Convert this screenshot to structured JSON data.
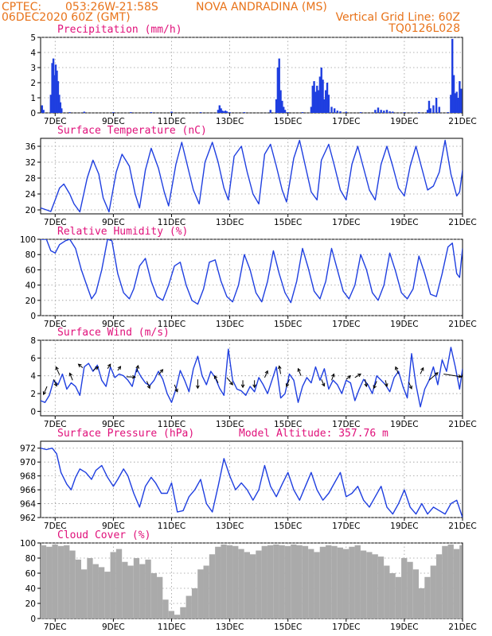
{
  "header": {
    "line1_left": "CPTEC:",
    "line1_coords": "053:26W-21:58S",
    "line1_city": "NOVA ANDRADINA (MS)",
    "line2_left": "06DEC2020 60Z (GMT)",
    "line2_right": "Vertical Grid Line: 60Z",
    "line3_right": "TQ0126L028"
  },
  "x_axis": {
    "ticks": [
      {
        "day": 7,
        "label": "7DEC"
      },
      {
        "day": 9,
        "label": "9DEC"
      },
      {
        "day": 11,
        "label": "11DEC"
      },
      {
        "day": 13,
        "label": "13DEC"
      },
      {
        "day": 15,
        "label": "15DEC"
      },
      {
        "day": 17,
        "label": "17DEC"
      },
      {
        "day": 19,
        "label": "19DEC"
      },
      {
        "day": 21,
        "label": "21DEC"
      }
    ],
    "range_days": [
      6.5,
      21.0
    ]
  },
  "colors": {
    "header": "#e8731a",
    "title": "#e0107a",
    "series": "#1f3fe0",
    "bars": "#1f3fe0",
    "cloud": "#aaaaaa",
    "arrows": "#000000"
  },
  "chart_data": [
    {
      "id": "precip",
      "type": "bar",
      "title": "Precipitation (mm/h)",
      "ylim": [
        0,
        5
      ],
      "yticks": [
        0,
        1,
        2,
        3,
        4,
        5
      ],
      "grid": true,
      "x_days": [
        6.55,
        6.6,
        6.85,
        6.9,
        6.94,
        6.98,
        7.02,
        7.06,
        7.1,
        7.14,
        7.18,
        7.22,
        7.5,
        8.0,
        9.0,
        9.6,
        10.3,
        11.0,
        12.0,
        12.6,
        12.65,
        12.7,
        12.75,
        12.8,
        12.85,
        12.9,
        13.0,
        13.5,
        14.4,
        14.6,
        14.65,
        14.7,
        14.75,
        14.8,
        14.85,
        14.9,
        15.0,
        15.5,
        15.8,
        15.85,
        15.9,
        15.95,
        16.0,
        16.05,
        16.1,
        16.15,
        16.2,
        16.25,
        16.3,
        16.35,
        16.4,
        16.5,
        16.6,
        16.7,
        16.8,
        17.0,
        17.5,
        18.0,
        18.1,
        18.2,
        18.3,
        18.4,
        18.5,
        18.6,
        19.0,
        19.5,
        19.8,
        19.85,
        19.9,
        20.0,
        20.1,
        20.2,
        20.5,
        20.6,
        20.65,
        20.7,
        20.75,
        20.8,
        20.85,
        20.9,
        20.95
      ],
      "values": [
        0.5,
        0.2,
        1.2,
        3.3,
        3.6,
        2.5,
        3.2,
        2.8,
        2.1,
        1.2,
        0.7,
        0.3,
        0.05,
        0.08,
        0.05,
        0.05,
        0.05,
        0.08,
        0.05,
        0.2,
        0.5,
        0.3,
        0.15,
        0.1,
        0.15,
        0.1,
        0.05,
        0.05,
        0.2,
        0.9,
        3.0,
        3.6,
        1.5,
        0.8,
        0.4,
        0.2,
        0.05,
        0.05,
        0.4,
        1.8,
        2.1,
        1.4,
        1.8,
        1.5,
        2.4,
        3.0,
        2.2,
        0.9,
        1.5,
        2.0,
        1.2,
        0.4,
        0.3,
        0.15,
        0.1,
        0.08,
        0.05,
        0.2,
        0.35,
        0.2,
        0.15,
        0.2,
        0.1,
        0.08,
        0.05,
        0.05,
        0.2,
        0.8,
        0.3,
        0.5,
        1.0,
        0.4,
        0.05,
        1.2,
        4.9,
        2.5,
        1.3,
        1.4,
        1.0,
        2.1,
        1.6
      ]
    },
    {
      "id": "temp",
      "type": "line",
      "title": "Surface Temperature (nC)",
      "ylim": [
        19,
        38
      ],
      "yticks": [
        20,
        24,
        28,
        32,
        36
      ],
      "grid": true,
      "x_days": [
        6.5,
        6.7,
        6.85,
        7.0,
        7.15,
        7.3,
        7.5,
        7.65,
        7.85,
        8.1,
        8.3,
        8.5,
        8.65,
        8.85,
        9.1,
        9.3,
        9.55,
        9.75,
        9.9,
        10.1,
        10.3,
        10.55,
        10.75,
        10.9,
        11.15,
        11.35,
        11.55,
        11.75,
        11.95,
        12.15,
        12.4,
        12.6,
        12.8,
        12.95,
        13.15,
        13.4,
        13.6,
        13.8,
        14.0,
        14.2,
        14.4,
        14.6,
        14.8,
        14.95,
        15.2,
        15.4,
        15.6,
        15.8,
        16.0,
        16.15,
        16.4,
        16.6,
        16.8,
        17.0,
        17.2,
        17.4,
        17.6,
        17.8,
        18.0,
        18.2,
        18.4,
        18.6,
        18.8,
        19.0,
        19.2,
        19.4,
        19.6,
        19.8,
        20.0,
        20.2,
        20.4,
        20.6,
        20.8,
        20.9,
        21.0
      ],
      "values": [
        20.5,
        20.0,
        19.6,
        22.5,
        25.5,
        26.5,
        24.0,
        21.5,
        19.5,
        28.0,
        32.5,
        29.0,
        23.0,
        19.5,
        29.5,
        34.0,
        31.0,
        24.0,
        20.5,
        30.0,
        35.5,
        30.5,
        24.5,
        21.0,
        31.5,
        37.0,
        31.0,
        25.0,
        21.5,
        32.0,
        37.0,
        32.0,
        25.5,
        22.5,
        33.5,
        36.0,
        29.5,
        24.0,
        21.5,
        34.0,
        36.5,
        31.0,
        25.0,
        22.0,
        33.0,
        37.5,
        31.0,
        24.5,
        22.5,
        32.5,
        36.5,
        31.0,
        25.0,
        22.5,
        31.5,
        36.0,
        30.5,
        25.0,
        22.5,
        31.5,
        36.0,
        31.0,
        25.5,
        23.5,
        31.0,
        36.0,
        30.5,
        25.0,
        26.0,
        29.5,
        37.5,
        29.0,
        23.5,
        24.5,
        30.0
      ]
    },
    {
      "id": "rh",
      "type": "line",
      "title": "Relative Humidity (%)",
      "ylim": [
        0,
        100
      ],
      "yticks": [
        0,
        20,
        40,
        60,
        80,
        100
      ],
      "grid": true,
      "x_days": [
        6.5,
        6.7,
        6.85,
        7.0,
        7.15,
        7.35,
        7.5,
        7.7,
        7.9,
        8.1,
        8.25,
        8.4,
        8.6,
        8.8,
        8.95,
        9.15,
        9.35,
        9.55,
        9.7,
        9.9,
        10.1,
        10.3,
        10.5,
        10.7,
        10.9,
        11.1,
        11.3,
        11.5,
        11.7,
        11.9,
        12.1,
        12.3,
        12.5,
        12.7,
        12.9,
        13.1,
        13.3,
        13.5,
        13.7,
        13.9,
        14.1,
        14.3,
        14.5,
        14.7,
        14.9,
        15.1,
        15.3,
        15.5,
        15.7,
        15.9,
        16.1,
        16.3,
        16.5,
        16.7,
        16.9,
        17.1,
        17.3,
        17.5,
        17.7,
        17.9,
        18.1,
        18.3,
        18.5,
        18.7,
        18.9,
        19.1,
        19.3,
        19.5,
        19.7,
        19.9,
        20.1,
        20.3,
        20.5,
        20.65,
        20.8,
        20.9,
        21.0
      ],
      "values": [
        100,
        100,
        85,
        82,
        93,
        98,
        100,
        88,
        60,
        38,
        22,
        30,
        60,
        100,
        98,
        55,
        30,
        22,
        35,
        65,
        75,
        45,
        25,
        20,
        40,
        65,
        70,
        40,
        20,
        15,
        35,
        70,
        73,
        45,
        25,
        18,
        40,
        80,
        60,
        30,
        18,
        45,
        85,
        55,
        30,
        17,
        45,
        88,
        62,
        32,
        22,
        45,
        88,
        60,
        32,
        22,
        40,
        80,
        60,
        30,
        20,
        40,
        82,
        58,
        30,
        22,
        35,
        78,
        55,
        28,
        25,
        55,
        90,
        95,
        55,
        50,
        88
      ]
    },
    {
      "id": "wind",
      "type": "line",
      "title": "Surface Wind (m/s)",
      "ylim": [
        -0.5,
        8
      ],
      "yticks": [
        0,
        2,
        4,
        6,
        8
      ],
      "grid": true,
      "x_days": [
        6.5,
        6.65,
        6.8,
        6.95,
        7.1,
        7.25,
        7.4,
        7.55,
        7.7,
        7.85,
        8.0,
        8.15,
        8.3,
        8.45,
        8.6,
        8.75,
        8.9,
        9.05,
        9.2,
        9.35,
        9.5,
        9.65,
        9.8,
        9.95,
        10.1,
        10.25,
        10.4,
        10.55,
        10.7,
        10.85,
        11.0,
        11.15,
        11.3,
        11.45,
        11.6,
        11.75,
        11.9,
        12.05,
        12.2,
        12.35,
        12.5,
        12.65,
        12.8,
        12.95,
        13.1,
        13.25,
        13.4,
        13.55,
        13.7,
        13.85,
        14.0,
        14.15,
        14.3,
        14.45,
        14.6,
        14.75,
        14.9,
        15.05,
        15.2,
        15.35,
        15.5,
        15.65,
        15.8,
        15.95,
        16.1,
        16.25,
        16.4,
        16.55,
        16.7,
        16.85,
        17.0,
        17.15,
        17.3,
        17.45,
        17.6,
        17.75,
        17.9,
        18.05,
        18.2,
        18.35,
        18.5,
        18.65,
        18.8,
        18.95,
        19.1,
        19.25,
        19.4,
        19.55,
        19.7,
        19.85,
        20.0,
        20.15,
        20.3,
        20.45,
        20.6,
        20.75,
        20.9,
        21.0
      ],
      "values": [
        1.2,
        1.0,
        1.8,
        3.5,
        3.0,
        4.2,
        2.5,
        3.2,
        2.8,
        1.8,
        5.0,
        5.4,
        4.5,
        5.2,
        3.5,
        2.8,
        5.0,
        3.8,
        4.2,
        4.0,
        3.5,
        2.8,
        4.8,
        3.9,
        3.2,
        2.9,
        3.5,
        4.5,
        3.6,
        2.0,
        1.0,
        2.5,
        4.6,
        3.5,
        2.2,
        4.8,
        6.2,
        4.0,
        3.0,
        4.5,
        3.8,
        2.6,
        1.8,
        7.0,
        3.5,
        2.5,
        2.3,
        1.8,
        2.8,
        2.2,
        3.8,
        3.0,
        2.0,
        3.5,
        5.0,
        1.5,
        2.0,
        4.2,
        3.5,
        1.0,
        2.8,
        3.8,
        3.2,
        5.0,
        3.5,
        4.8,
        2.5,
        3.5,
        3.0,
        2.0,
        3.5,
        3.2,
        1.2,
        2.5,
        3.6,
        3.0,
        2.0,
        4.0,
        3.5,
        3.0,
        2.2,
        3.8,
        4.5,
        2.8,
        1.5,
        6.5,
        3.0,
        0.5,
        2.5,
        3.5,
        5.0,
        3.0,
        5.8,
        4.5,
        7.2,
        5.0,
        2.5,
        4.8
      ],
      "arrows": [
        {
          "x": 6.72,
          "y": 2.8,
          "dx": -0.12,
          "dy": -0.9
        },
        {
          "x": 6.95,
          "y": 3.6,
          "dx": 0.1,
          "dy": -0.75
        },
        {
          "x": 7.15,
          "y": 4.1,
          "dx": -0.12,
          "dy": 0.9
        },
        {
          "x": 7.6,
          "y": 3.5,
          "dx": -0.1,
          "dy": 0.8
        },
        {
          "x": 7.95,
          "y": 4.9,
          "dx": -0.15,
          "dy": 0.4
        },
        {
          "x": 8.3,
          "y": 4.6,
          "dx": 0.18,
          "dy": 0.4
        },
        {
          "x": 8.8,
          "y": 4.8,
          "dx": 0.1,
          "dy": 0.5
        },
        {
          "x": 9.15,
          "y": 4.6,
          "dx": 0.1,
          "dy": 0.45
        },
        {
          "x": 9.45,
          "y": 3.9,
          "dx": 0.3,
          "dy": -0.05
        },
        {
          "x": 9.8,
          "y": 4.4,
          "dx": 0.05,
          "dy": 0.75
        },
        {
          "x": 10.15,
          "y": 3.4,
          "dx": 0.1,
          "dy": -0.8
        },
        {
          "x": 10.55,
          "y": 4.1,
          "dx": 0.15,
          "dy": 0.6
        },
        {
          "x": 11.1,
          "y": 3.0,
          "dx": 0.1,
          "dy": -0.8
        },
        {
          "x": 11.9,
          "y": 3.6,
          "dx": 0.0,
          "dy": -1.0
        },
        {
          "x": 12.6,
          "y": 3.2,
          "dx": -0.12,
          "dy": 0.8
        },
        {
          "x": 12.9,
          "y": 3.8,
          "dx": 0.2,
          "dy": -0.8
        },
        {
          "x": 13.45,
          "y": 3.5,
          "dx": 0.0,
          "dy": -0.8
        },
        {
          "x": 13.85,
          "y": 3.5,
          "dx": 0.0,
          "dy": -0.8
        },
        {
          "x": 14.2,
          "y": 3.8,
          "dx": 0.1,
          "dy": 0.75
        },
        {
          "x": 14.75,
          "y": 4.2,
          "dx": -0.05,
          "dy": 0.9
        },
        {
          "x": 15.05,
          "y": 3.6,
          "dx": -0.1,
          "dy": -0.8
        },
        {
          "x": 15.45,
          "y": 4.0,
          "dx": -0.1,
          "dy": 0.8
        },
        {
          "x": 16.15,
          "y": 3.6,
          "dx": 0.1,
          "dy": -0.75
        },
        {
          "x": 16.5,
          "y": 3.5,
          "dx": 0.08,
          "dy": 0.7
        },
        {
          "x": 17.0,
          "y": 3.6,
          "dx": 0.15,
          "dy": 0.4
        },
        {
          "x": 17.3,
          "y": 3.8,
          "dx": 0.2,
          "dy": 0.4
        },
        {
          "x": 17.65,
          "y": 3.6,
          "dx": 0.05,
          "dy": -0.8
        },
        {
          "x": 18.05,
          "y": 3.4,
          "dx": -0.1,
          "dy": -0.8
        },
        {
          "x": 18.35,
          "y": 3.5,
          "dx": 0.05,
          "dy": -0.7
        },
        {
          "x": 18.8,
          "y": 4.2,
          "dx": -0.1,
          "dy": 0.8
        },
        {
          "x": 19.15,
          "y": 3.3,
          "dx": 0.1,
          "dy": -0.75
        },
        {
          "x": 19.55,
          "y": 4.2,
          "dx": 0.1,
          "dy": 0.7
        },
        {
          "x": 19.85,
          "y": 3.5,
          "dx": 0.3,
          "dy": 0.85
        },
        {
          "x": 20.35,
          "y": 4.2,
          "dx": 0.6,
          "dy": -0.3
        },
        {
          "x": 20.95,
          "y": 3.8,
          "dx": 0.15,
          "dy": 0.9
        }
      ]
    },
    {
      "id": "pressure",
      "type": "line",
      "title": "Surface Pressure (hPa)",
      "annotation": "Model Altitude: 357.76 m",
      "ylim": [
        962,
        973
      ],
      "yticks": [
        962,
        964,
        966,
        968,
        970,
        972
      ],
      "grid": true,
      "x_days": [
        6.5,
        6.7,
        6.9,
        7.05,
        7.2,
        7.4,
        7.55,
        7.7,
        7.85,
        8.05,
        8.25,
        8.4,
        8.6,
        8.8,
        9.0,
        9.15,
        9.35,
        9.5,
        9.7,
        9.9,
        10.1,
        10.3,
        10.45,
        10.65,
        10.85,
        11.0,
        11.2,
        11.4,
        11.6,
        11.8,
        12.0,
        12.2,
        12.4,
        12.6,
        12.8,
        13.0,
        13.2,
        13.4,
        13.6,
        13.8,
        14.0,
        14.2,
        14.4,
        14.6,
        14.8,
        15.0,
        15.2,
        15.4,
        15.6,
        15.8,
        16.0,
        16.2,
        16.4,
        16.6,
        16.8,
        17.0,
        17.2,
        17.4,
        17.6,
        17.8,
        18.0,
        18.2,
        18.4,
        18.6,
        18.8,
        19.0,
        19.2,
        19.4,
        19.6,
        19.8,
        20.0,
        20.2,
        20.4,
        20.6,
        20.8,
        21.0
      ],
      "values": [
        972.0,
        971.8,
        972.0,
        971.2,
        968.5,
        966.8,
        966.0,
        967.8,
        969.0,
        968.5,
        967.5,
        968.8,
        969.5,
        967.8,
        966.5,
        967.5,
        969.0,
        968.0,
        965.5,
        963.5,
        966.5,
        967.8,
        967.0,
        965.5,
        965.5,
        967.0,
        962.8,
        963.0,
        965.0,
        966.0,
        967.5,
        964.0,
        962.8,
        966.5,
        970.5,
        968.0,
        966.0,
        967.0,
        966.0,
        964.5,
        966.0,
        969.5,
        966.5,
        965.0,
        966.8,
        968.5,
        966.0,
        964.5,
        966.5,
        968.5,
        966.0,
        964.5,
        965.5,
        967.0,
        968.5,
        965.0,
        965.5,
        966.5,
        964.5,
        963.5,
        965.0,
        966.5,
        963.5,
        962.5,
        964.0,
        966.0,
        963.5,
        962.5,
        964.0,
        962.5,
        963.5,
        963.0,
        962.5,
        964.0,
        964.5,
        962.0
      ]
    },
    {
      "id": "cloud",
      "type": "bar",
      "title": "Cloud Cover (%)",
      "ylim": [
        0,
        100
      ],
      "yticks": [
        0,
        20,
        40,
        60,
        80,
        100
      ],
      "grid": true,
      "x_days": [
        6.55,
        6.75,
        6.95,
        7.15,
        7.35,
        7.55,
        7.75,
        7.95,
        8.15,
        8.35,
        8.55,
        8.75,
        8.95,
        9.15,
        9.35,
        9.55,
        9.75,
        9.95,
        10.15,
        10.35,
        10.55,
        10.75,
        10.95,
        11.15,
        11.35,
        11.55,
        11.75,
        11.95,
        12.15,
        12.35,
        12.55,
        12.75,
        12.95,
        13.15,
        13.35,
        13.55,
        13.75,
        13.95,
        14.15,
        14.35,
        14.55,
        14.75,
        14.95,
        15.15,
        15.35,
        15.55,
        15.75,
        15.95,
        16.15,
        16.35,
        16.55,
        16.75,
        16.95,
        17.15,
        17.35,
        17.55,
        17.75,
        17.95,
        18.15,
        18.35,
        18.55,
        18.75,
        18.95,
        19.15,
        19.35,
        19.55,
        19.75,
        19.95,
        20.15,
        20.35,
        20.55,
        20.75,
        20.95
      ],
      "values": [
        97,
        95,
        98,
        96,
        97,
        90,
        78,
        65,
        80,
        72,
        68,
        62,
        88,
        92,
        75,
        70,
        80,
        72,
        78,
        60,
        55,
        25,
        10,
        5,
        15,
        30,
        40,
        65,
        70,
        85,
        95,
        98,
        97,
        96,
        92,
        88,
        85,
        90,
        96,
        97,
        98,
        97,
        96,
        98,
        97,
        96,
        92,
        88,
        95,
        97,
        96,
        94,
        92,
        95,
        97,
        90,
        88,
        85,
        82,
        70,
        60,
        55,
        80,
        75,
        65,
        40,
        55,
        70,
        85,
        96,
        98,
        92,
        97
      ]
    }
  ]
}
